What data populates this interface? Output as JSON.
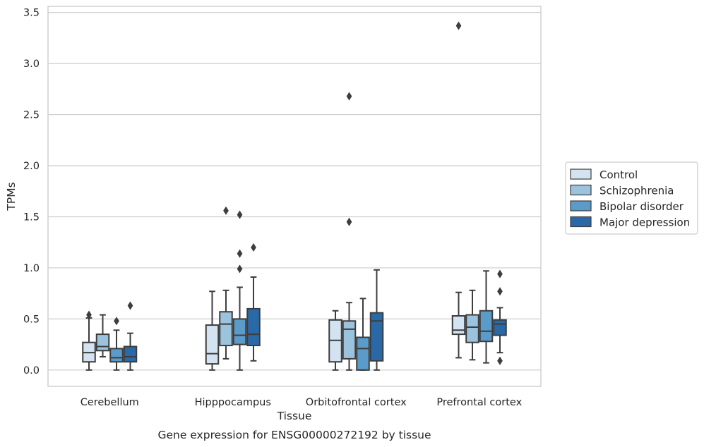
{
  "chart_data": {
    "type": "box",
    "title": "",
    "caption": "Gene expression for ENSG00000272192 by tissue",
    "xlabel": "Tissue",
    "ylabel": "TPMs",
    "ylim": [
      -0.16,
      3.56
    ],
    "yticks": [
      0.0,
      0.5,
      1.0,
      1.5,
      2.0,
      2.5,
      3.0,
      3.5
    ],
    "ytick_labels": [
      "0.0",
      "0.5",
      "1.0",
      "1.5",
      "2.0",
      "2.5",
      "3.0",
      "3.5"
    ],
    "grid": "horizontal",
    "legend_position": "right-outside",
    "categories": [
      "Cerebellum",
      "Hipppocampus",
      "Orbitofrontal cortex",
      "Prefrontal cortex"
    ],
    "series": [
      {
        "name": "Control",
        "color": "#d4e3f2",
        "boxes": [
          {
            "whislo": 0.0,
            "q1": 0.08,
            "med": 0.17,
            "q3": 0.27,
            "whishi": 0.51,
            "fliers": [
              0.54
            ]
          },
          {
            "whislo": 0.0,
            "q1": 0.06,
            "med": 0.16,
            "q3": 0.44,
            "whishi": 0.77,
            "fliers": []
          },
          {
            "whislo": 0.0,
            "q1": 0.08,
            "med": 0.29,
            "q3": 0.49,
            "whishi": 0.58,
            "fliers": []
          },
          {
            "whislo": 0.12,
            "q1": 0.35,
            "med": 0.39,
            "q3": 0.53,
            "whishi": 0.76,
            "fliers": [
              3.37
            ]
          }
        ]
      },
      {
        "name": "Schizophrenia",
        "color": "#9cc3de",
        "boxes": [
          {
            "whislo": 0.13,
            "q1": 0.19,
            "med": 0.23,
            "q3": 0.35,
            "whishi": 0.54,
            "fliers": []
          },
          {
            "whislo": 0.11,
            "q1": 0.24,
            "med": 0.45,
            "q3": 0.57,
            "whishi": 0.78,
            "fliers": [
              1.56
            ]
          },
          {
            "whislo": 0.0,
            "q1": 0.11,
            "med": 0.4,
            "q3": 0.48,
            "whishi": 0.66,
            "fliers": [
              1.45,
              2.68
            ]
          },
          {
            "whislo": 0.1,
            "q1": 0.27,
            "med": 0.42,
            "q3": 0.54,
            "whishi": 0.78,
            "fliers": []
          }
        ]
      },
      {
        "name": "Bipolar disorder",
        "color": "#5b9bc9",
        "boxes": [
          {
            "whislo": 0.0,
            "q1": 0.08,
            "med": 0.12,
            "q3": 0.21,
            "whishi": 0.39,
            "fliers": [
              0.48
            ]
          },
          {
            "whislo": 0.0,
            "q1": 0.25,
            "med": 0.34,
            "q3": 0.5,
            "whishi": 0.81,
            "fliers": [
              0.99,
              1.14,
              1.52
            ]
          },
          {
            "whislo": 0.0,
            "q1": 0.0,
            "med": 0.21,
            "q3": 0.32,
            "whishi": 0.7,
            "fliers": []
          },
          {
            "whislo": 0.07,
            "q1": 0.28,
            "med": 0.38,
            "q3": 0.58,
            "whishi": 0.97,
            "fliers": []
          }
        ]
      },
      {
        "name": "Major depression",
        "color": "#2a69a8",
        "boxes": [
          {
            "whislo": 0.0,
            "q1": 0.08,
            "med": 0.13,
            "q3": 0.23,
            "whishi": 0.36,
            "fliers": [
              0.63
            ]
          },
          {
            "whislo": 0.09,
            "q1": 0.24,
            "med": 0.35,
            "q3": 0.6,
            "whishi": 0.91,
            "fliers": [
              1.2
            ]
          },
          {
            "whislo": 0.0,
            "q1": 0.09,
            "med": 0.48,
            "q3": 0.56,
            "whishi": 0.98,
            "fliers": []
          },
          {
            "whislo": 0.17,
            "q1": 0.34,
            "med": 0.45,
            "q3": 0.49,
            "whishi": 0.61,
            "fliers": [
              0.09,
              0.77,
              0.94
            ]
          }
        ]
      }
    ]
  },
  "colors": {
    "axis_edge": "#cccccc",
    "grid": "#cccccc",
    "box_line": "#3d3d3d",
    "background": "#ffffff"
  }
}
